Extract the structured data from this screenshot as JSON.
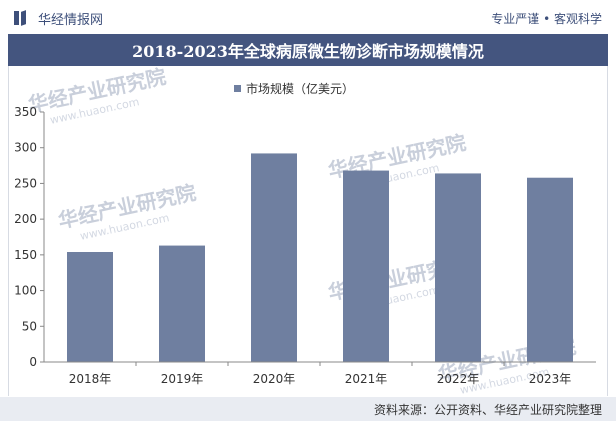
{
  "header": {
    "brand_name": "华经情报网",
    "slogan": "专业严谨 • 客观科学"
  },
  "chart_data": {
    "type": "bar",
    "title": "2018-2023年全球病原微生物诊断市场规模情况",
    "categories": [
      "2018年",
      "2019年",
      "2020年",
      "2021年",
      "2022年",
      "2023年"
    ],
    "series": [
      {
        "name": "市场规模（亿美元）",
        "values": [
          154,
          163,
          292,
          268,
          264,
          258
        ]
      }
    ],
    "yticks": [
      0,
      50,
      100,
      150,
      200,
      250,
      300,
      350
    ],
    "ylim": [
      0,
      350
    ],
    "xlabel": "",
    "ylabel": "",
    "grid": false,
    "legend_position": "top-center",
    "bar_color": "#6f7fa0"
  },
  "watermark": {
    "text": "华经产业研究院",
    "url": "www.huaon.com"
  },
  "footer": {
    "source": "资料来源：公开资料、华经产业研究院整理"
  },
  "colors": {
    "title_band": "#44557f",
    "brand": "#3d4f7a",
    "footer_band": "#e9ecf2"
  }
}
